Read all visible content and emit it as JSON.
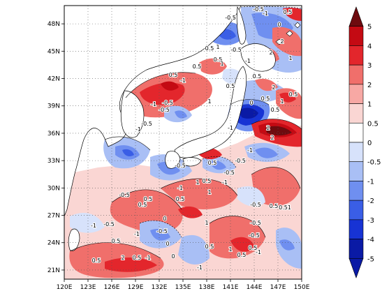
{
  "map": {
    "lon_ticks": [
      "120E",
      "123E",
      "126E",
      "129E",
      "132E",
      "135E",
      "138E",
      "141E",
      "144E",
      "147E",
      "150E"
    ],
    "lat_ticks": [
      "48N",
      "45N",
      "42N",
      "39N",
      "36N",
      "33N",
      "30N",
      "27N",
      "24N",
      "21N"
    ],
    "extent": {
      "lon": [
        120,
        150
      ],
      "lat": [
        20,
        50
      ]
    },
    "grid": "dotted",
    "contour_labels": [
      "-0.5",
      "-1",
      "-0.5",
      "0.5",
      "1",
      "-0.5",
      "0.5",
      "1",
      "-1",
      "0.5",
      "-1",
      "0.5",
      "-0.5",
      "-1",
      "-0.5",
      "-0.5",
      "-1",
      "2",
      "-1",
      "-0.5",
      "-0.5",
      "-1",
      "0.5",
      "1",
      "-0.5",
      "-1",
      "0.5",
      "0.5",
      "-0.5",
      "-0.5",
      "-1",
      "0.5",
      "0.5",
      "-0.5",
      "-1",
      "0",
      "0.5",
      "1",
      "0.5",
      "-1",
      "1",
      "-0.5",
      "0.5",
      "-0.5",
      "-1",
      "0",
      "0.5",
      "2",
      "-1",
      "-0.5",
      "0.5",
      "0.51",
      "0",
      "0.5",
      "1",
      "-1",
      "0.5",
      "2",
      "2",
      "1",
      "0.5",
      "0",
      "1",
      "0.5",
      "0.5",
      "2",
      "2",
      "0.5",
      "0",
      "1",
      "0.5",
      "0.5"
    ]
  },
  "colorbar": {
    "labels": [
      "5",
      "4",
      "3",
      "2",
      "1",
      "0.5",
      "0",
      "-0.5",
      "-1",
      "-2",
      "-3",
      "-4",
      "-5"
    ],
    "colors": [
      "#6e0b0f",
      "#c40a13",
      "#e3262c",
      "#f06f6b",
      "#f7a8a4",
      "#fad6d3",
      "#ffffff",
      "#d7e2fb",
      "#a9bff5",
      "#6f8ff0",
      "#3a5ee6",
      "#1733d4",
      "#0a1aa5"
    ],
    "placement": "right"
  }
}
